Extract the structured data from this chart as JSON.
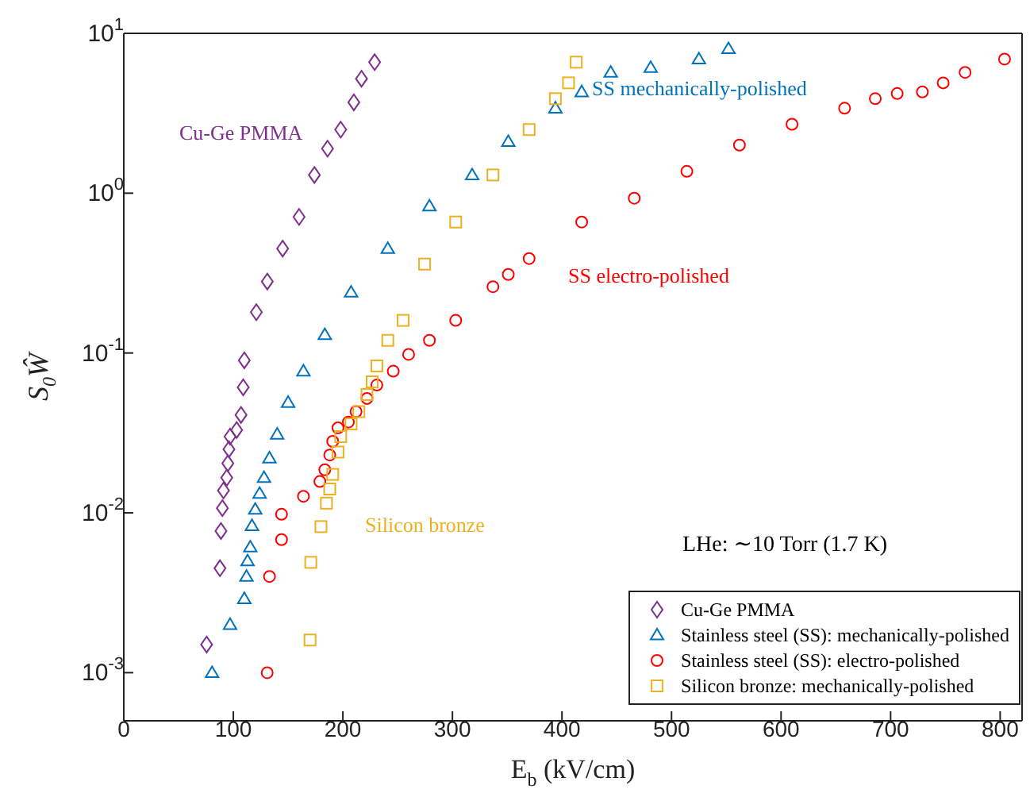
{
  "chart_data": {
    "type": "scatter",
    "xlabel": "E$_{b}$ (kV/cm)",
    "ylabel": "S$_{0}$Ŵ",
    "xlim": [
      0,
      820
    ],
    "xticks": [
      0,
      100,
      200,
      300,
      400,
      500,
      600,
      700,
      800
    ],
    "ylim": [
      0.0005,
      10
    ],
    "log": "y",
    "yticks": [
      {
        "value": 0.001,
        "label": "10$^{-3}$"
      },
      {
        "value": 0.01,
        "label": "10$^{-2}$"
      },
      {
        "value": 0.1,
        "label": "10$^{-1}$"
      },
      {
        "value": 1,
        "label": "10$^{0}$"
      },
      {
        "value": 10,
        "label": "10$^{1}$"
      }
    ],
    "grid": false,
    "legend": "bottom right",
    "annotations": [
      "Cu-Ge PMMA",
      "SS mechanically-polished",
      "SS electro-polished",
      "Silicon bronze",
      "LHe: ∼10 Torr (1.7 K)"
    ],
    "series": [
      {
        "name": "Cu-Ge PMMA",
        "color": "#7e2f8e",
        "marker": "diamond",
        "x": [
          75.6,
          87.8,
          88.7,
          90,
          91,
          94,
          95,
          96,
          97,
          103,
          107,
          109,
          110,
          121,
          131,
          145,
          160,
          174,
          186,
          198,
          210,
          217,
          229
        ],
        "values": [
          0.0015,
          0.0045,
          0.0077,
          0.0107,
          0.0138,
          0.0166,
          0.0204,
          0.025,
          0.03,
          0.033,
          0.041,
          0.061,
          0.09,
          0.18,
          0.28,
          0.45,
          0.71,
          1.3,
          1.9,
          2.5,
          3.7,
          5.2,
          6.6
        ]
      },
      {
        "name": "Stainless steel (SS): mechanically-polished",
        "color": "#0072bd",
        "marker": "triangle",
        "x": [
          80.6,
          97,
          110,
          112,
          113,
          115.5,
          117,
          120,
          124,
          128,
          133,
          140,
          150,
          164,
          183.5,
          207.5,
          241,
          279,
          318,
          351,
          394,
          418,
          444.5,
          481,
          525,
          552
        ],
        "values": [
          0.001,
          0.002,
          0.0029,
          0.004,
          0.005,
          0.0061,
          0.0083,
          0.0105,
          0.0132,
          0.0166,
          0.022,
          0.031,
          0.049,
          0.077,
          0.13,
          0.24,
          0.45,
          0.83,
          1.3,
          2.1,
          3.4,
          4.3,
          5.7,
          6.1,
          6.9,
          8.0
        ]
      },
      {
        "name": "Stainless steel (SS): electro-polished",
        "color": "#ff0000",
        "marker": "circle",
        "x": [
          130.9,
          133,
          144,
          144,
          164,
          179,
          183.5,
          188,
          190.7,
          195.5,
          205,
          212,
          222,
          231,
          246,
          260,
          279,
          303,
          337,
          351,
          370,
          418,
          466,
          514,
          562,
          610,
          658,
          686,
          706,
          729,
          748,
          768,
          804
        ],
        "values": [
          0.001,
          0.004,
          0.0068,
          0.0098,
          0.0127,
          0.0157,
          0.0186,
          0.023,
          0.028,
          0.034,
          0.037,
          0.043,
          0.052,
          0.063,
          0.077,
          0.098,
          0.12,
          0.16,
          0.26,
          0.31,
          0.39,
          0.66,
          0.93,
          1.37,
          2.0,
          2.7,
          3.4,
          3.9,
          4.2,
          4.3,
          4.9,
          5.7,
          6.9
        ]
      },
      {
        "name": "Silicon bronze: mechanically-polished",
        "color": "#edb120",
        "marker": "square",
        "x": [
          170,
          170.7,
          180,
          185,
          188,
          190.7,
          195.5,
          198,
          207.5,
          214.6,
          222,
          226.7,
          231,
          241,
          255,
          274.6,
          303,
          337,
          370,
          394,
          406,
          413
        ],
        "values": [
          0.0016,
          0.0049,
          0.0082,
          0.0115,
          0.0141,
          0.0174,
          0.024,
          0.03,
          0.036,
          0.043,
          0.055,
          0.066,
          0.083,
          0.12,
          0.16,
          0.36,
          0.66,
          1.3,
          2.5,
          3.9,
          4.9,
          6.6
        ]
      }
    ]
  }
}
